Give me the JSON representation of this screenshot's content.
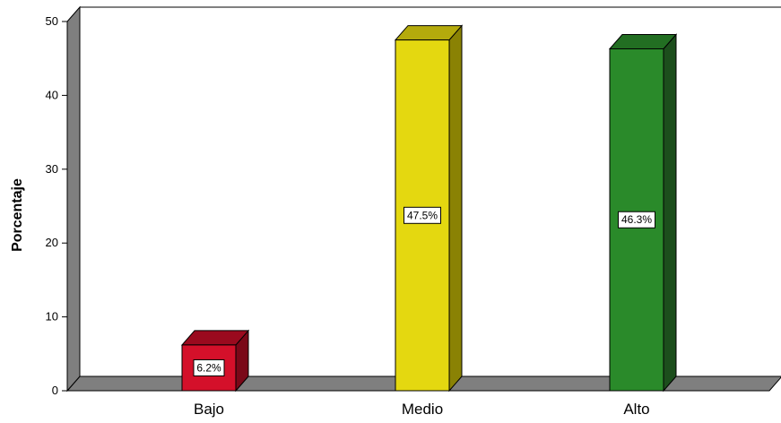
{
  "chart_data": {
    "type": "bar",
    "title": "",
    "xlabel": "",
    "ylabel": "Porcentaje",
    "ylim": [
      0,
      50
    ],
    "yticks": [
      0,
      10,
      20,
      30,
      40,
      50
    ],
    "grid": false,
    "legend": "none",
    "style": "3d",
    "categories": [
      "Bajo",
      "Medio",
      "Alto"
    ],
    "values": [
      6.2,
      47.5,
      46.3
    ],
    "data_labels": [
      "6.2%",
      "47.5%",
      "46.3%"
    ],
    "colors": [
      "#d4102a",
      "#e4d810",
      "#2a8a2a"
    ],
    "side_colors": [
      "#7a0818",
      "#8a8204",
      "#1c4e1c"
    ],
    "top_colors": [
      "#9a0a1e",
      "#b4aa0c",
      "#226e22"
    ],
    "wall_color": "#7f7f7f"
  }
}
